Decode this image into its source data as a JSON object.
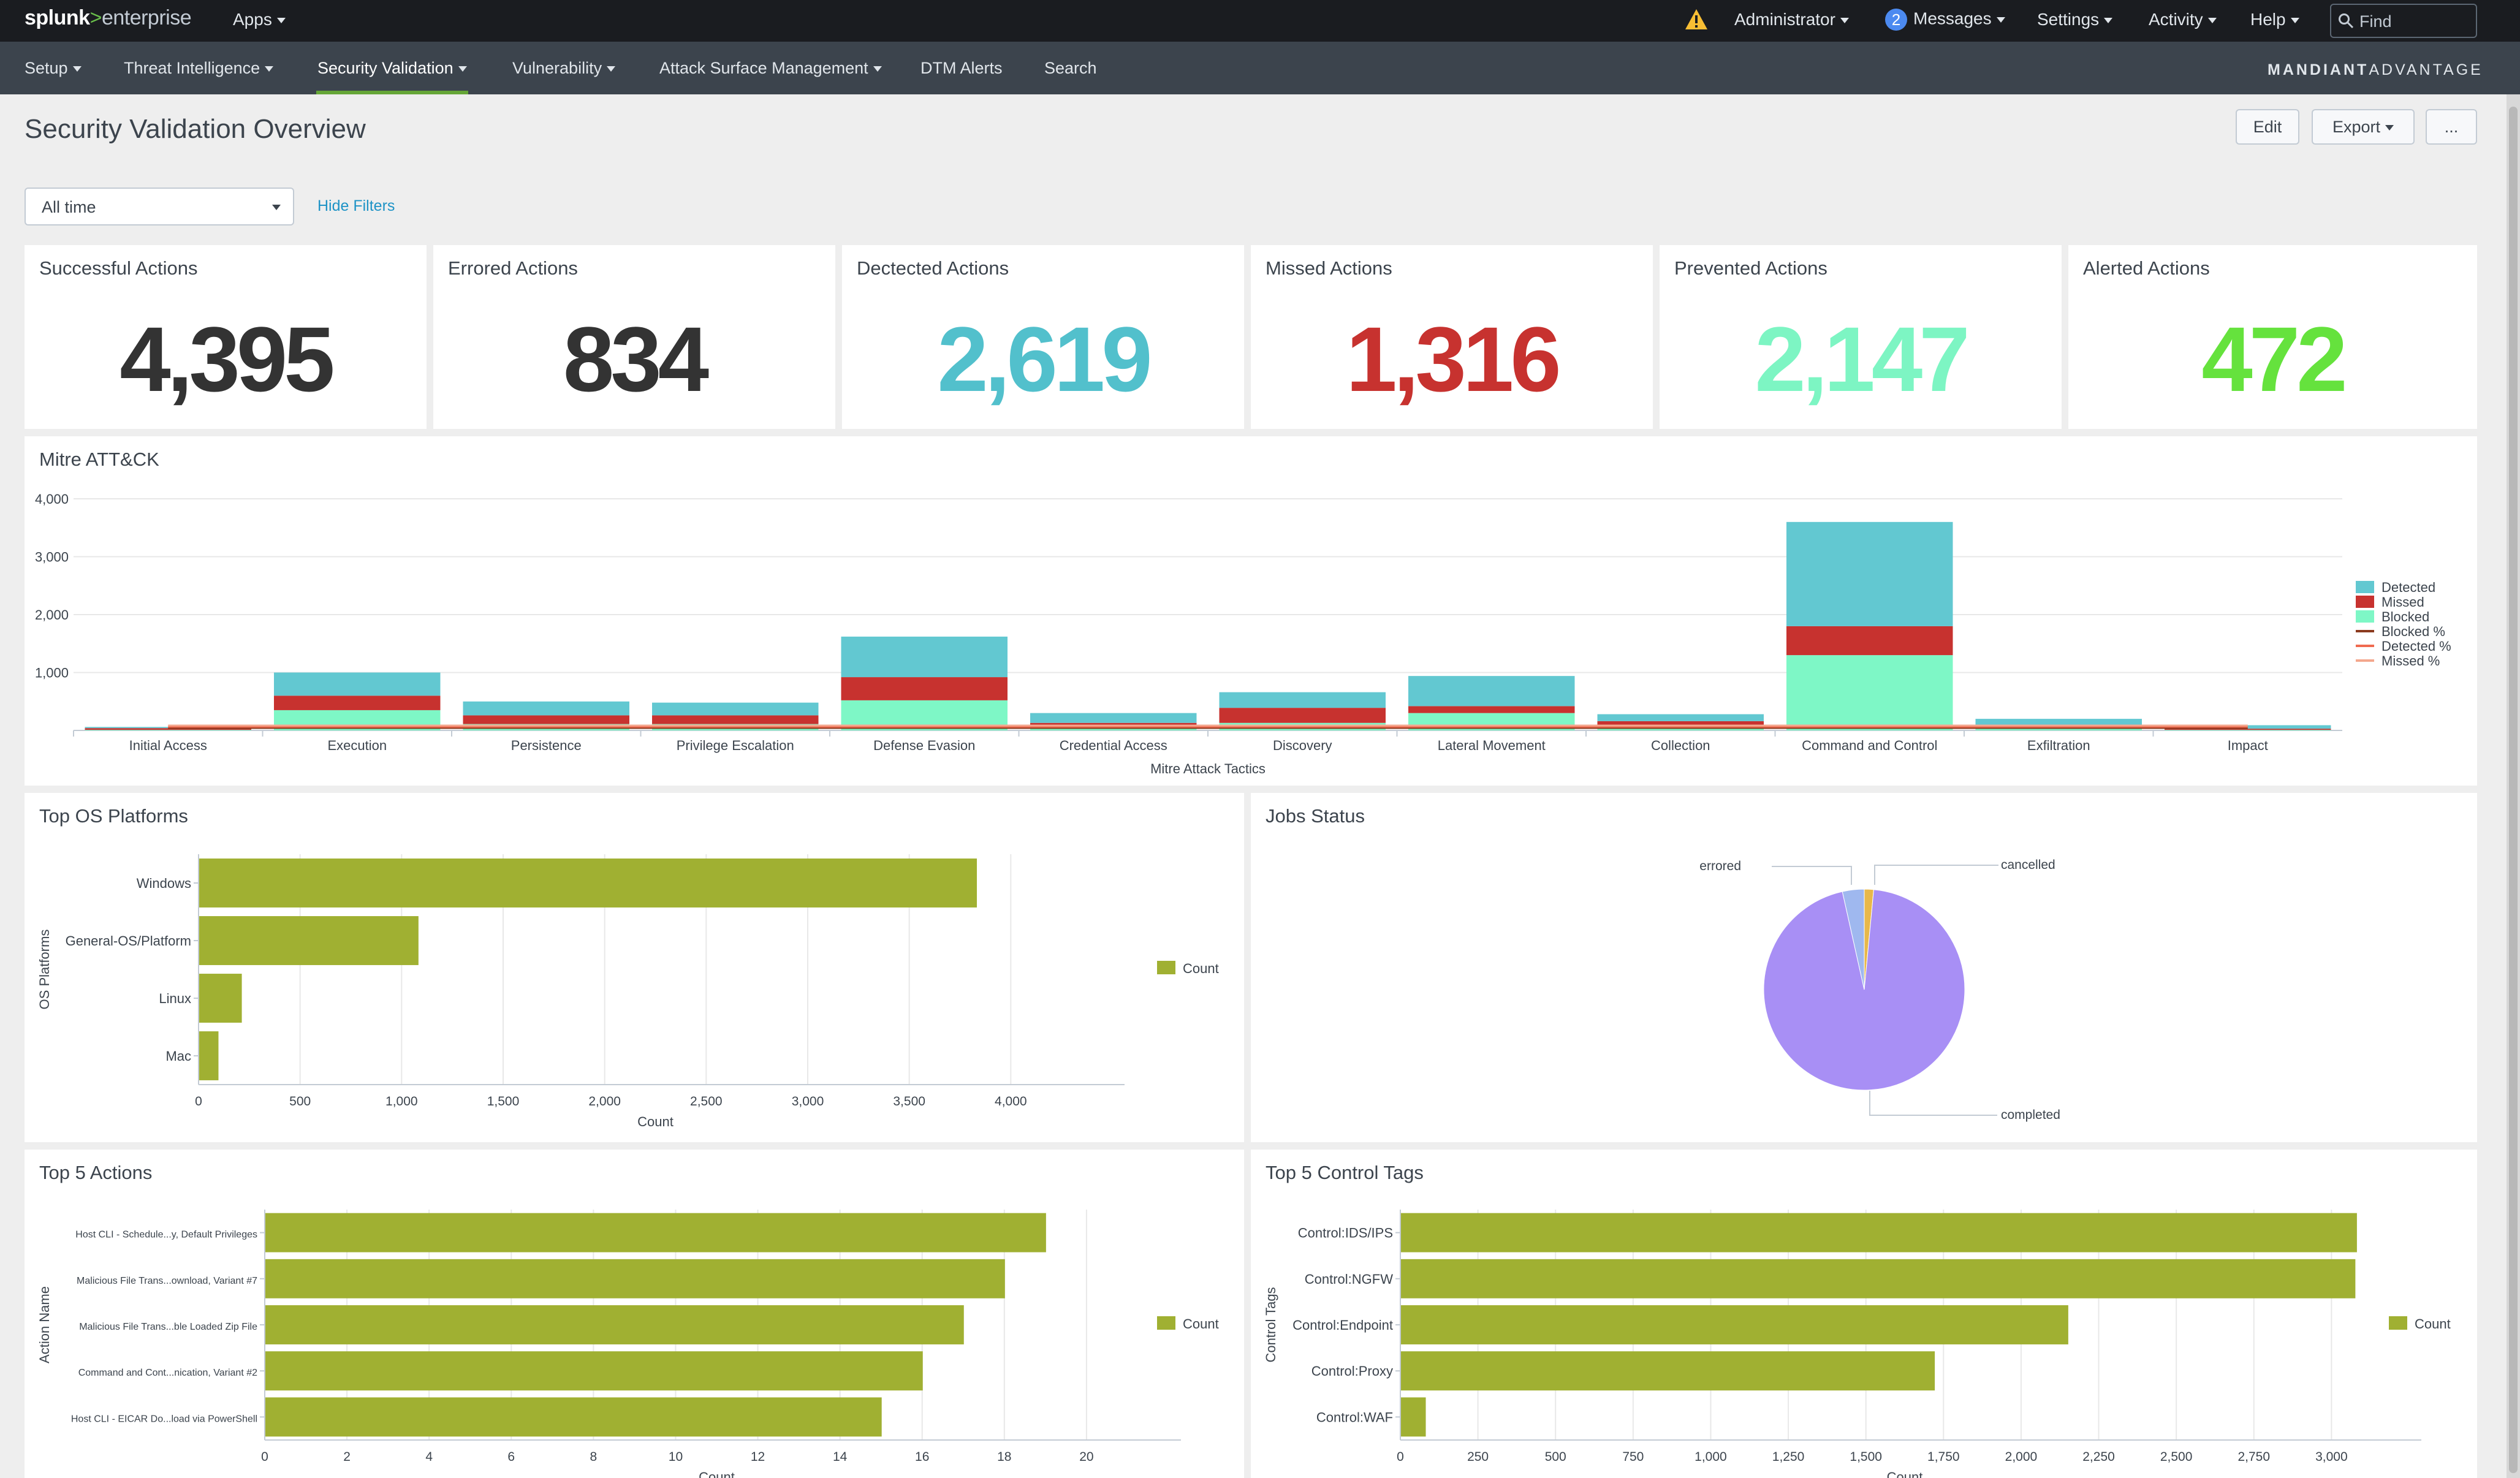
{
  "topbar": {
    "brand": {
      "part1": "splunk",
      "part2": ">",
      "part3": "enterprise"
    },
    "apps": "Apps",
    "administrator": "Administrator",
    "messages_count": "2",
    "messages": "Messages",
    "settings": "Settings",
    "activity": "Activity",
    "help": "Help",
    "find_placeholder": "Find"
  },
  "navbar": {
    "items": [
      "Setup",
      "Threat Intelligence",
      "Security Validation",
      "Vulnerability",
      "Attack Surface Management",
      "DTM Alerts",
      "Search"
    ],
    "active": "Security Validation",
    "logo_part1": "MANDIANT",
    "logo_part2": "ADVANTAGE"
  },
  "page": {
    "title": "Security Validation Overview",
    "edit": "Edit",
    "export": "Export",
    "more": "...",
    "time_filter": "All time",
    "hide_filters": "Hide Filters"
  },
  "kpis": [
    {
      "label": "Successful Actions",
      "value": "4,395",
      "color": "#333333"
    },
    {
      "label": "Errored Actions",
      "value": "834",
      "color": "#333333"
    },
    {
      "label": "Dectected Actions",
      "value": "2,619",
      "color": "#52c0cc"
    },
    {
      "label": "Missed Actions",
      "value": "1,316",
      "color": "#c7322f"
    },
    {
      "label": "Prevented Actions",
      "value": "2,147",
      "color": "#7df5c3"
    },
    {
      "label": "Alerted Actions",
      "value": "472",
      "color": "#65e23d"
    }
  ],
  "colors": {
    "detected": "#62c8d1",
    "missed": "#c7322f",
    "blocked": "#7ef7c6",
    "olive": "#a0b032",
    "pie_completed": "#a88ff5",
    "pie_errored": "#9fb8ef",
    "pie_cancelled": "#e8b84a"
  },
  "chart_data": [
    {
      "id": "mitre",
      "title": "Mitre ATT&CK",
      "type": "bar",
      "stacked": true,
      "xlabel": "Mitre Attack Tactics",
      "ylabel": "",
      "ylim": [
        0,
        4000
      ],
      "yticks": [
        "1,000",
        "2,000",
        "3,000",
        "4,000"
      ],
      "categories": [
        "Initial Access",
        "Execution",
        "Persistence",
        "Privilege Escalation",
        "Defense Evasion",
        "Credential Access",
        "Discovery",
        "Lateral Movement",
        "Collection",
        "Command and Control",
        "Exfiltration",
        "Impact"
      ],
      "series": [
        {
          "name": "Blocked",
          "values": [
            10,
            350,
            110,
            110,
            520,
            80,
            130,
            300,
            80,
            1300,
            30,
            10
          ]
        },
        {
          "name": "Missed",
          "values": [
            30,
            250,
            150,
            150,
            400,
            50,
            260,
            120,
            80,
            500,
            20,
            20
          ]
        },
        {
          "name": "Detected",
          "values": [
            20,
            400,
            240,
            220,
            700,
            170,
            270,
            520,
            120,
            1800,
            150,
            60
          ]
        }
      ],
      "line_series": [
        {
          "name": "Blocked %",
          "values": [
            0,
            0,
            0,
            0,
            0,
            0,
            0,
            0,
            0,
            0,
            0,
            0
          ]
        },
        {
          "name": "Detected %",
          "values": [
            0,
            0,
            0,
            0,
            0,
            0,
            0,
            0,
            0,
            0,
            0,
            0
          ]
        },
        {
          "name": "Missed %",
          "values": [
            0,
            0,
            0,
            0,
            0,
            0,
            0,
            0,
            0,
            0,
            0,
            0
          ]
        }
      ],
      "legend": [
        "Detected",
        "Missed",
        "Blocked",
        "Blocked %",
        "Detected %",
        "Missed %"
      ],
      "legend_placement": "right"
    },
    {
      "id": "os",
      "title": "Top OS Platforms",
      "type": "bar",
      "orientation": "horizontal",
      "categories": [
        "Windows",
        "General-OS/Platform",
        "Linux",
        "Mac"
      ],
      "values": [
        3830,
        1080,
        210,
        95
      ],
      "xlabel": "Count",
      "ylabel": "OS Platforms",
      "xlim": [
        0,
        4500
      ],
      "xticks": [
        "0",
        "500",
        "1,000",
        "1,500",
        "2,000",
        "2,500",
        "3,000",
        "3,500",
        "4,000"
      ],
      "legend": [
        "Count"
      ],
      "legend_placement": "right"
    },
    {
      "id": "jobs",
      "title": "Jobs Status",
      "type": "pie",
      "slices": [
        {
          "label": "completed",
          "value": 95
        },
        {
          "label": "errored",
          "value": 3.5
        },
        {
          "label": "cancelled",
          "value": 1.5
        }
      ]
    },
    {
      "id": "actions",
      "title": "Top 5 Actions",
      "type": "bar",
      "orientation": "horizontal",
      "categories": [
        "Host CLI - Schedule...y, Default Privileges",
        "Malicious File Trans...ownload, Variant #7",
        "Malicious File Trans...ble Loaded Zip File",
        "Command and Cont...nication, Variant #2",
        "Host CLI - EICAR Do...load via PowerShell"
      ],
      "values": [
        19,
        18,
        17,
        16,
        15
      ],
      "xlabel": "Count",
      "ylabel": "Action Name",
      "xlim": [
        0,
        22
      ],
      "xticks": [
        "0",
        "2",
        "4",
        "6",
        "8",
        "10",
        "12",
        "14",
        "16",
        "18",
        "20"
      ],
      "legend": [
        "Count"
      ],
      "legend_placement": "right"
    },
    {
      "id": "tags",
      "title": "Top 5 Control Tags",
      "type": "bar",
      "orientation": "horizontal",
      "categories": [
        "Control:IDS/IPS",
        "Control:NGFW",
        "Control:Endpoint",
        "Control:Proxy",
        "Control:WAF"
      ],
      "values": [
        3080,
        3075,
        2150,
        1720,
        80
      ],
      "xlabel": "Count",
      "ylabel": "Control Tags",
      "xlim": [
        0,
        3250
      ],
      "xticks": [
        "0",
        "250",
        "500",
        "750",
        "1,000",
        "1,250",
        "1,500",
        "1,750",
        "2,000",
        "2,250",
        "2,500",
        "2,750",
        "3,000"
      ],
      "legend": [
        "Count"
      ],
      "legend_placement": "right"
    }
  ]
}
